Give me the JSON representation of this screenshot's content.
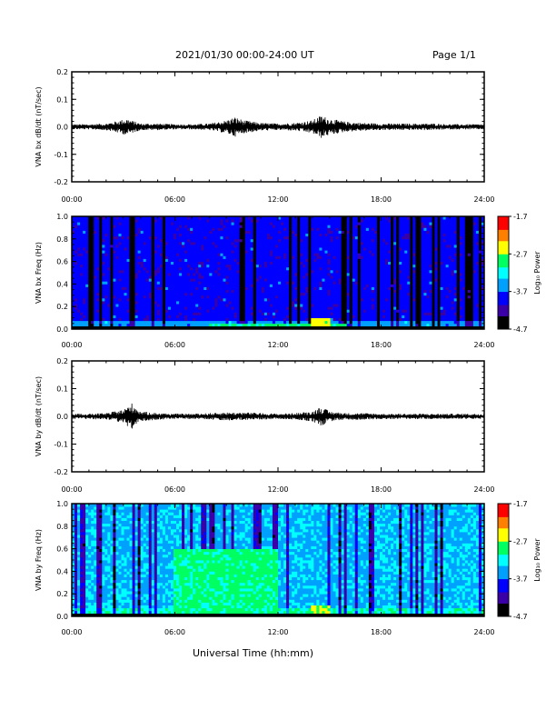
{
  "header": {
    "title": "2021/01/30  00:00-24:00 UT",
    "page": "Page 1/1"
  },
  "footer": {
    "xlabel": "Universal Time (hh:mm)"
  },
  "colors": {
    "trace": "#000000",
    "background": "#ffffff",
    "colorbar": [
      "#000000",
      "#3b00a8",
      "#0000ff",
      "#00a0ff",
      "#00ffff",
      "#00ff60",
      "#ffff00",
      "#ff8000",
      "#ff0000"
    ]
  },
  "chart_data": [
    {
      "type": "line",
      "ylabel": "VNA bx dB/dt (nT/sec)",
      "ylim": [
        -0.2,
        0.2
      ],
      "yticks": [
        "0.2",
        "0.1",
        "0.0",
        "-0.1",
        "-0.2"
      ],
      "xticks": [
        "00:00",
        "06:00",
        "12:00",
        "18:00",
        "24:00"
      ],
      "xlim": [
        0,
        24
      ],
      "series": [
        {
          "x": [
            0,
            1,
            2,
            3.2,
            4,
            5,
            6,
            7,
            8,
            9,
            9.5,
            10,
            11,
            12,
            13,
            14,
            14.5,
            15,
            16,
            17,
            18,
            19,
            20,
            21,
            22,
            23,
            24
          ],
          "envelope": [
            0.008,
            0.008,
            0.01,
            0.025,
            0.01,
            0.01,
            0.008,
            0.008,
            0.01,
            0.02,
            0.03,
            0.02,
            0.012,
            0.01,
            0.012,
            0.02,
            0.035,
            0.025,
            0.015,
            0.012,
            0.01,
            0.01,
            0.01,
            0.01,
            0.008,
            0.008,
            0.008
          ]
        }
      ]
    },
    {
      "type": "heatmap",
      "ylabel": "VNA bx Freq (Hz)",
      "ylim": [
        0.0,
        1.0
      ],
      "yticks": [
        "1.0",
        "0.8",
        "0.6",
        "0.4",
        "0.2",
        "0.0"
      ],
      "xticks": [
        "00:00",
        "06:00",
        "12:00",
        "18:00",
        "24:00"
      ],
      "xlim": [
        0,
        24
      ],
      "colorbar": {
        "label": "Log₁₀ Power",
        "ticks": [
          "-1.7",
          "-2.7",
          "-3.7",
          "-4.7"
        ],
        "range": [
          -4.7,
          -1.7
        ]
      },
      "base_level": -3.9,
      "enhancements": [
        {
          "t_start": 14.0,
          "t_end": 15.0,
          "f_max": 0.1,
          "level": -2.6
        },
        {
          "t_start": 8.0,
          "t_end": 16.0,
          "f_max": 0.05,
          "level": -3.0
        }
      ]
    },
    {
      "type": "line",
      "ylabel": "VNA by dB/dt (nT/sec)",
      "ylim": [
        -0.2,
        0.2
      ],
      "yticks": [
        "0.2",
        "0.1",
        "0.0",
        "-0.1",
        "-0.2"
      ],
      "xticks": [
        "00:00",
        "06:00",
        "12:00",
        "18:00",
        "24:00"
      ],
      "xlim": [
        0,
        24
      ],
      "series": [
        {
          "x": [
            0,
            1,
            2,
            3,
            3.5,
            4,
            5,
            6,
            7,
            8,
            9,
            10,
            11,
            12,
            13,
            14,
            14.5,
            15,
            16,
            17,
            18,
            19,
            20,
            21,
            22,
            23,
            24
          ],
          "envelope": [
            0.008,
            0.008,
            0.01,
            0.02,
            0.04,
            0.015,
            0.01,
            0.008,
            0.008,
            0.01,
            0.012,
            0.012,
            0.01,
            0.008,
            0.01,
            0.015,
            0.03,
            0.015,
            0.01,
            0.01,
            0.008,
            0.008,
            0.008,
            0.008,
            0.008,
            0.008,
            0.008
          ]
        }
      ]
    },
    {
      "type": "heatmap",
      "ylabel": "VNA by Freq (Hz)",
      "ylim": [
        0.0,
        1.0
      ],
      "yticks": [
        "1.0",
        "0.8",
        "0.6",
        "0.4",
        "0.2",
        "0.0"
      ],
      "xticks": [
        "00:00",
        "06:00",
        "12:00",
        "18:00",
        "24:00"
      ],
      "xlim": [
        0,
        24
      ],
      "colorbar": {
        "label": "Log₁₀ Power",
        "ticks": [
          "-1.7",
          "-2.7",
          "-3.7",
          "-4.7"
        ],
        "range": [
          -4.7,
          -1.7
        ]
      },
      "base_level": -3.4,
      "enhancements": [
        {
          "t_start": 6.0,
          "t_end": 12.0,
          "f_max": 0.6,
          "level": -3.0
        },
        {
          "t_start": 14.0,
          "t_end": 15.0,
          "f_max": 0.1,
          "level": -2.7
        }
      ]
    }
  ]
}
